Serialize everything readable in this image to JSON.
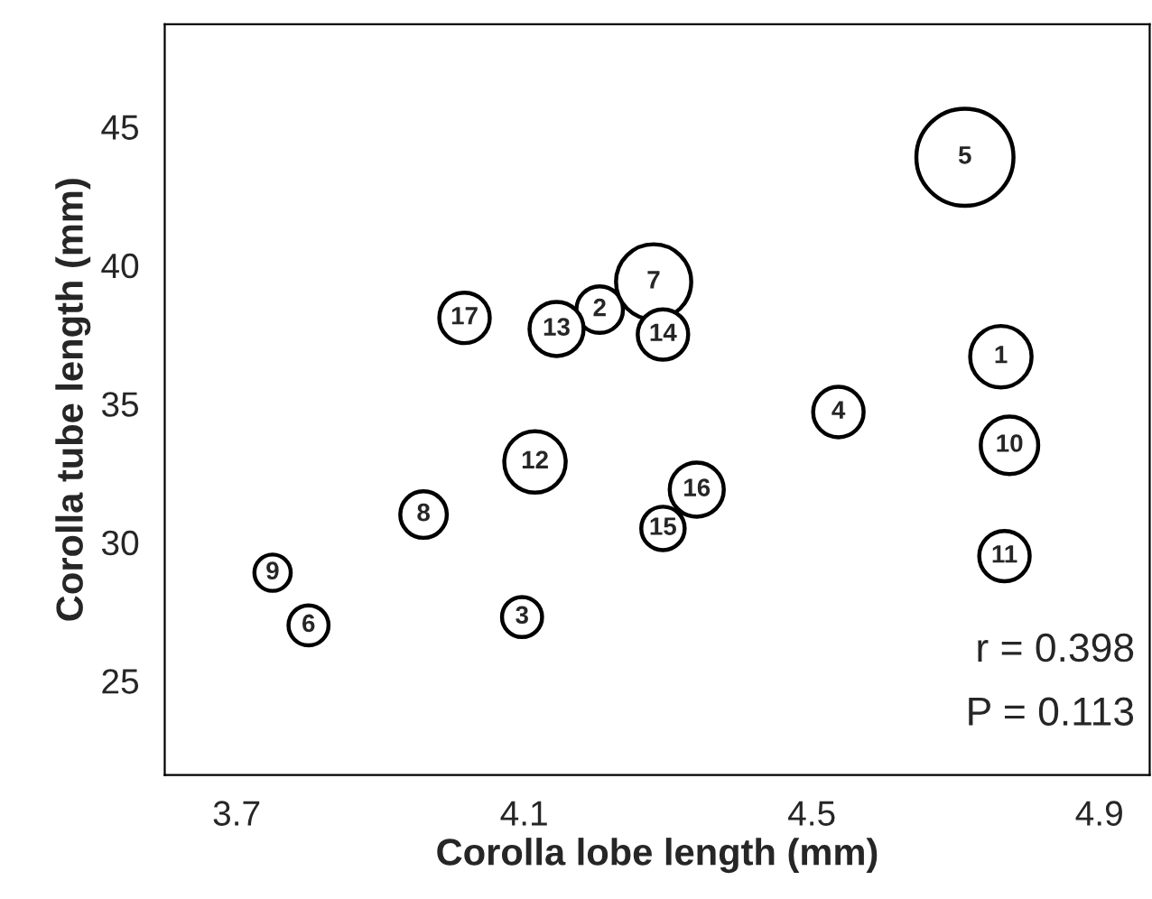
{
  "chart_data": {
    "type": "bubble",
    "xlabel": "Corolla lobe length (mm)",
    "ylabel": "Corolla tube length (mm)",
    "x": [
      4.763,
      4.205,
      4.097,
      4.537,
      4.713,
      3.8,
      4.28,
      3.96,
      3.75,
      4.775,
      4.768,
      4.115,
      4.145,
      4.293,
      4.293,
      4.34,
      4.017
    ],
    "series": [
      {
        "color": "#ffffff",
        "values": [
          36.7,
          38.4,
          27.3,
          34.7,
          43.9,
          27.0,
          39.4,
          31.0,
          28.9,
          33.5,
          29.5,
          32.9,
          37.7,
          37.5,
          30.5,
          31.9,
          38.1
        ],
        "sizes": [
          0.4,
          0.23,
          0.17,
          0.27,
          1,
          0.17,
          0.6,
          0.23,
          0.14,
          0.35,
          0.27,
          0.4,
          0.31,
          0.27,
          0.2,
          0.31,
          0.27
        ]
      }
    ],
    "annotations": [
      {
        "text": "1",
        "x": 4.763,
        "y": 36.7
      },
      {
        "text": "2",
        "x": 4.205,
        "y": 38.4
      },
      {
        "text": "3",
        "x": 4.097,
        "y": 27.3
      },
      {
        "text": "4",
        "x": 4.537,
        "y": 34.7
      },
      {
        "text": "5",
        "x": 4.713,
        "y": 43.9
      },
      {
        "text": "6",
        "x": 3.8,
        "y": 27.0
      },
      {
        "text": "7",
        "x": 4.28,
        "y": 39.4
      },
      {
        "text": "8",
        "x": 3.96,
        "y": 31.0
      },
      {
        "text": "9",
        "x": 3.75,
        "y": 28.9
      },
      {
        "text": "10",
        "x": 4.775,
        "y": 33.5
      },
      {
        "text": "11",
        "x": 4.768,
        "y": 29.5
      },
      {
        "text": "12",
        "x": 4.115,
        "y": 32.9
      },
      {
        "text": "13",
        "x": 4.145,
        "y": 37.7
      },
      {
        "text": "14",
        "x": 4.293,
        "y": 37.5
      },
      {
        "text": "15",
        "x": 4.293,
        "y": 30.5
      },
      {
        "text": "16",
        "x": 4.34,
        "y": 31.9
      },
      {
        "text": "17",
        "x": 4.017,
        "y": 38.1
      },
      "r = 0.398",
      "P = 0.113"
    ],
    "xlim": [
      3.6,
      4.97
    ],
    "ylim": [
      21.6,
      48.7
    ],
    "xticks": [
      3.7,
      4.1,
      4.5,
      4.9
    ],
    "yticks": [
      25,
      30,
      35,
      40,
      45
    ],
    "grid": false,
    "legend": false
  }
}
